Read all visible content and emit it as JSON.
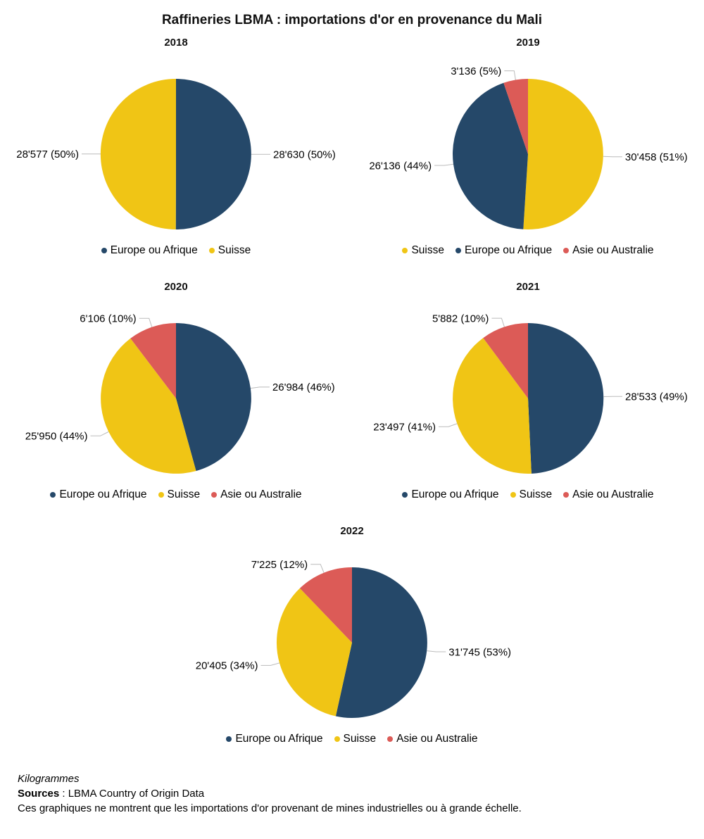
{
  "page_title": "Raffineries LBMA : importations d'or en provenance du Mali",
  "unit": "Kilogrammes",
  "colors": {
    "europe_ou_afrique": "#254869",
    "suisse": "#f0c515",
    "asie_ou_australie": "#dc5b57",
    "leader_line": "#bbbbbb"
  },
  "footer": {
    "unit_note": "Kilogrammes",
    "sources_label": "Sources",
    "sources_rest": " : LBMA Country of Origin Data",
    "disclaimer": "Ces graphiques ne montrent que les importations d'or provenant de mines industrielles ou à grande échelle."
  },
  "chart_data": [
    {
      "type": "pie",
      "title": "2018",
      "legend_position": "bottom",
      "label_format": "value (pct%)",
      "slices": [
        {
          "name": "Europe ou Afrique",
          "value": 28630,
          "pct": 50,
          "label": "28'630 (50%)",
          "color": "#254869"
        },
        {
          "name": "Suisse",
          "value": 28577,
          "pct": 50,
          "label": "28'577 (50%)",
          "color": "#f0c515"
        }
      ]
    },
    {
      "type": "pie",
      "title": "2019",
      "legend_position": "bottom",
      "label_format": "value (pct%)",
      "slices": [
        {
          "name": "Suisse",
          "value": 30458,
          "pct": 51,
          "label": "30'458 (51%)",
          "color": "#f0c515"
        },
        {
          "name": "Europe ou Afrique",
          "value": 26136,
          "pct": 44,
          "label": "26'136 (44%)",
          "color": "#254869"
        },
        {
          "name": "Asie ou Australie",
          "value": 3136,
          "pct": 5,
          "label": "3'136 (5%)",
          "color": "#dc5b57"
        }
      ]
    },
    {
      "type": "pie",
      "title": "2020",
      "legend_position": "bottom",
      "label_format": "value (pct%)",
      "slices": [
        {
          "name": "Europe ou Afrique",
          "value": 26984,
          "pct": 46,
          "label": "26'984 (46%)",
          "color": "#254869"
        },
        {
          "name": "Suisse",
          "value": 25950,
          "pct": 44,
          "label": "25'950 (44%)",
          "color": "#f0c515"
        },
        {
          "name": "Asie ou Australie",
          "value": 6106,
          "pct": 10,
          "label": "6'106 (10%)",
          "color": "#dc5b57"
        }
      ]
    },
    {
      "type": "pie",
      "title": "2021",
      "legend_position": "bottom",
      "label_format": "value (pct%)",
      "slices": [
        {
          "name": "Europe ou Afrique",
          "value": 28533,
          "pct": 49,
          "label": "28'533 (49%)",
          "color": "#254869"
        },
        {
          "name": "Suisse",
          "value": 23497,
          "pct": 41,
          "label": "23'497 (41%)",
          "color": "#f0c515"
        },
        {
          "name": "Asie ou Australie",
          "value": 5882,
          "pct": 10,
          "label": "5'882 (10%)",
          "color": "#dc5b57"
        }
      ]
    },
    {
      "type": "pie",
      "title": "2022",
      "legend_position": "bottom",
      "label_format": "value (pct%)",
      "slices": [
        {
          "name": "Europe ou Afrique",
          "value": 31745,
          "pct": 53,
          "label": "31'745 (53%)",
          "color": "#254869"
        },
        {
          "name": "Suisse",
          "value": 20405,
          "pct": 34,
          "label": "20'405 (34%)",
          "color": "#f0c515"
        },
        {
          "name": "Asie ou Australie",
          "value": 7225,
          "pct": 12,
          "label": "7'225 (12%)",
          "color": "#dc5b57"
        }
      ]
    }
  ]
}
